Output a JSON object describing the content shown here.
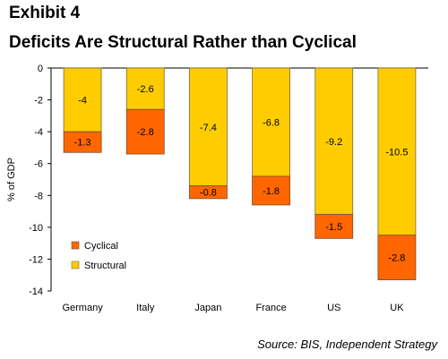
{
  "header": {
    "exhibit": "Exhibit 4",
    "title": "Deficits Are Structural Rather than Cyclical"
  },
  "source": "Source: BIS, Independent Strategy",
  "chart_data": {
    "type": "bar",
    "stacked": true,
    "categories": [
      "Germany",
      "Italy",
      "Japan",
      "France",
      "US",
      "UK"
    ],
    "series": [
      {
        "name": "Structural",
        "values": [
          -4,
          -2.6,
          -7.4,
          -6.8,
          -9.2,
          -10.5
        ],
        "color": "#FFCC00"
      },
      {
        "name": "Cyclical",
        "values": [
          -1.3,
          -2.8,
          -0.8,
          -1.8,
          -1.5,
          -2.8
        ],
        "color": "#FF6600"
      }
    ],
    "ylabel": "% of GDP",
    "ylim": [
      -14,
      0
    ],
    "yticks": [
      0,
      -2,
      -4,
      -6,
      -8,
      -10,
      -12,
      -14
    ],
    "legend_position": "bottom-left",
    "grid": false
  }
}
